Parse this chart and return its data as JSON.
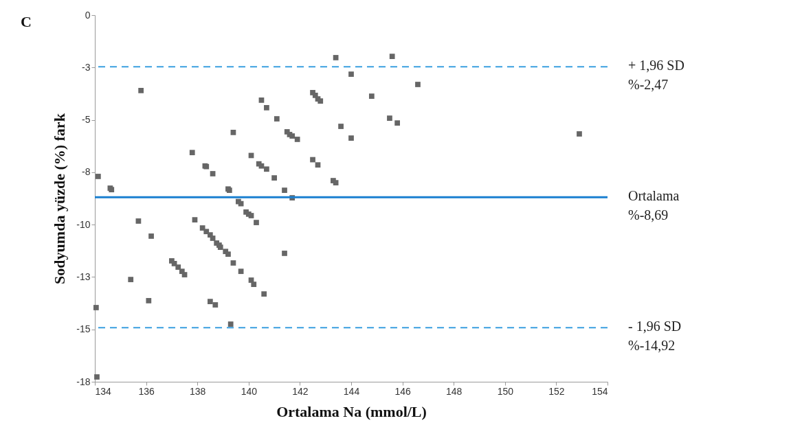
{
  "chart_data": {
    "type": "scatter",
    "xlabel": "Ortalama Na (mmol/L)",
    "ylabel": "Sodyumda yüzde (%) fark",
    "annotations": [
      "C"
    ],
    "x": [
      134.13,
      134.6,
      134.65,
      135.8,
      135.7,
      136.2,
      135.4,
      136.1,
      134.05,
      134.08,
      137.8,
      138.3,
      138.35,
      138.6,
      139.2,
      139.25,
      139.6,
      139.7,
      139.9,
      140.0,
      140.1,
      140.3,
      139.4,
      140.1,
      140.4,
      140.5,
      140.7,
      141.0,
      141.4,
      141.7,
      140.5,
      140.7,
      141.1,
      141.5,
      141.6,
      141.7,
      141.9,
      142.5,
      142.6,
      142.7,
      142.8,
      142.5,
      142.7,
      143.3,
      143.4,
      143.4,
      144.0,
      143.6,
      144.0,
      144.8,
      145.6,
      145.5,
      145.8,
      146.6,
      152.9,
      137.9,
      138.2,
      138.35,
      138.5,
      138.6,
      138.75,
      138.85,
      138.9,
      139.1,
      139.2,
      139.4,
      139.7,
      140.1,
      140.2,
      140.6,
      137.0,
      137.1,
      137.25,
      137.4,
      137.5,
      138.5,
      138.7,
      139.3,
      141.4
    ],
    "series": [
      {
        "color": "#666666",
        "values": [
          -7.7,
          -8.26,
          -8.33,
          -3.6,
          -9.83,
          -10.55,
          -12.62,
          -13.63,
          -13.96,
          -17.27,
          -6.56,
          -7.2,
          -7.23,
          -7.57,
          -8.3,
          -8.36,
          -8.9,
          -9.0,
          -9.4,
          -9.5,
          -9.57,
          -9.9,
          -5.6,
          -6.7,
          -7.1,
          -7.2,
          -7.35,
          -7.77,
          -8.36,
          -8.72,
          -4.06,
          -4.42,
          -4.95,
          -5.57,
          -5.7,
          -5.77,
          -5.93,
          -3.7,
          -3.83,
          -4.0,
          -4.1,
          -6.9,
          -7.15,
          -7.9,
          -8.0,
          -2.03,
          -2.82,
          -5.31,
          -5.87,
          -3.87,
          -1.97,
          -4.92,
          -5.15,
          -3.31,
          -5.67,
          -9.77,
          -10.16,
          -10.33,
          -10.49,
          -10.65,
          -10.88,
          -10.98,
          -11.08,
          -11.28,
          -11.41,
          -11.83,
          -12.23,
          -12.65,
          -12.85,
          -13.31,
          -11.73,
          -11.86,
          -12.03,
          -12.23,
          -12.39,
          -13.67,
          -13.83,
          -14.75,
          -11.37
        ]
      }
    ],
    "marker": "square",
    "xlim": [
      134,
      154
    ],
    "xticks": [
      134,
      136,
      138,
      140,
      142,
      144,
      146,
      148,
      150,
      152,
      154
    ],
    "ylim": [
      -17.5,
      0
    ],
    "yticks": [
      0,
      {
        "value": -2.5,
        "label": "-3"
      },
      -5,
      {
        "value": -7.5,
        "label": "-8"
      },
      -10,
      {
        "value": -12.5,
        "label": "-13"
      },
      -15,
      {
        "value": -17.5,
        "label": "-18"
      }
    ],
    "ref_lines": [
      {
        "axis": "y",
        "value": -2.47,
        "label": "+ 1,96 SD\n%-2,47",
        "color": "#3a9fe0",
        "line_style": "dashed"
      },
      {
        "axis": "y",
        "value": -8.69,
        "label": "Ortalama\n%-8,69",
        "color": "#1a7fd0",
        "line_style": "solid"
      },
      {
        "axis": "y",
        "value": -14.92,
        "label": "- 1,96 SD\n%-14,92",
        "color": "#3a9fe0",
        "line_style": "dashed"
      }
    ]
  }
}
